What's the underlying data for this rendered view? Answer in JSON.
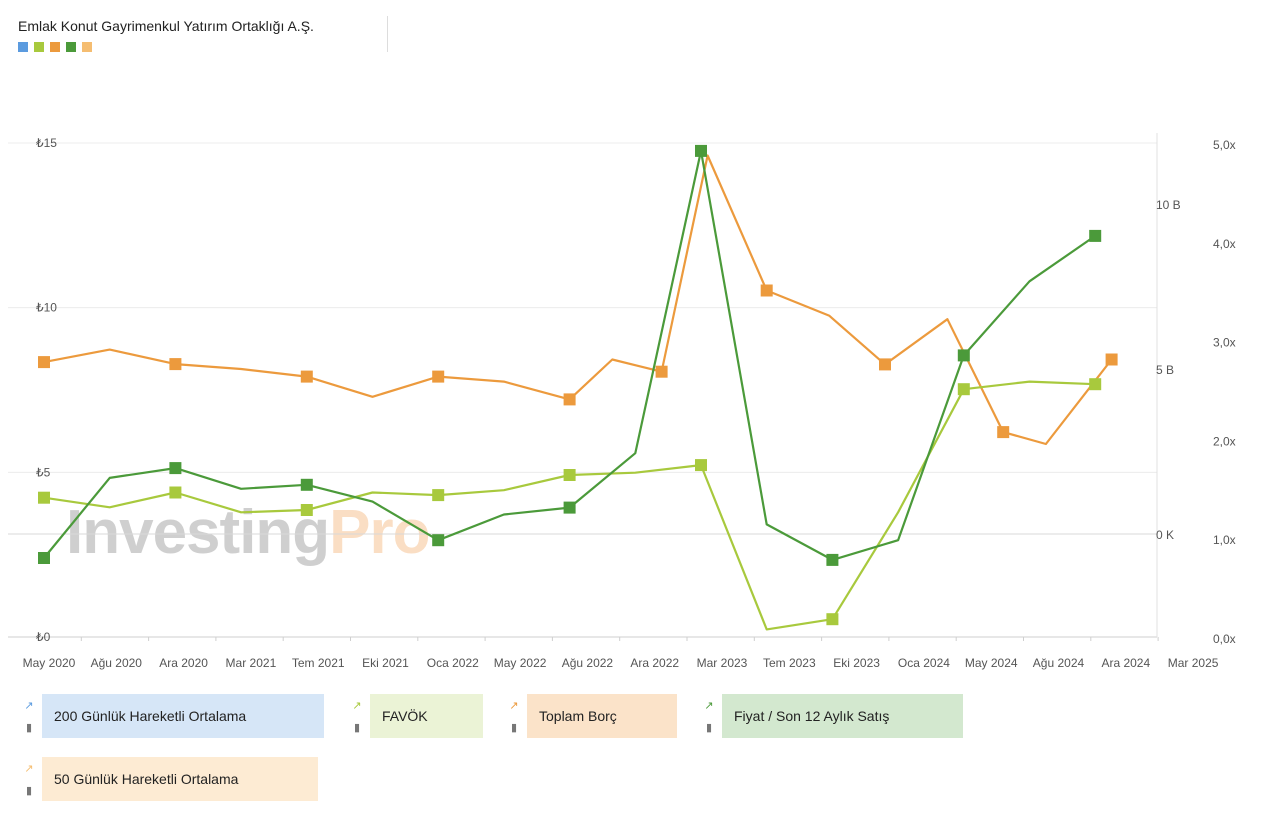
{
  "header": {
    "title": "Emlak Konut Gayrimenkul Yatırım Ortaklığı A.Ş."
  },
  "watermark": {
    "part1": "Investing",
    "part2": "Pro"
  },
  "colors": {
    "ma200": "#5b9bdf",
    "favok": "#a8c93d",
    "debt": "#ec9a3d",
    "ps": "#4b9a3a",
    "ma50": "#f5bd71"
  },
  "legend": [
    {
      "key": "ma200",
      "label": "200 Günlük Hareketli Ortalama",
      "bg": "#d6e6f7"
    },
    {
      "key": "favok",
      "label": "FAVÖK",
      "bg": "#ebf3d6"
    },
    {
      "key": "debt",
      "label": "Toplam Borç",
      "bg": "#fbe3c9"
    },
    {
      "key": "ps",
      "label": "Fiyat / Son 12 Aylık Satış",
      "bg": "#d3e8cf"
    },
    {
      "key": "ma50",
      "label": "50 Günlük Hareketli Ortalama",
      "bg": "#fdebd3"
    }
  ],
  "chart_data": {
    "type": "line",
    "grid": true,
    "x_ticks": [
      "May 2020",
      "Ağu 2020",
      "Ara 2020",
      "Mar 2021",
      "Tem 2021",
      "Eki 2021",
      "Oca 2022",
      "May 2022",
      "Ağu 2022",
      "Ara 2022",
      "Mar 2023",
      "Tem 2023",
      "Eki 2023",
      "Oca 2024",
      "May 2024",
      "Ağu 2024",
      "Ara 2024",
      "Mar 2025"
    ],
    "axes": {
      "left": {
        "ticks": [
          "₺0",
          "₺5",
          "₺10",
          "₺15"
        ],
        "values": [
          0,
          5,
          10,
          15
        ],
        "range": [
          0,
          15
        ]
      },
      "mid": {
        "ticks": [
          "0 K",
          "5 B",
          "10 B"
        ],
        "values": [
          0,
          5,
          10
        ],
        "range": [
          -3.12,
          11.85
        ]
      },
      "right": {
        "ticks": [
          "0,0x",
          "1,0x",
          "2,0x",
          "3,0x",
          "4,0x",
          "5,0x"
        ],
        "values": [
          0,
          1,
          2,
          3,
          4,
          5
        ],
        "range": [
          0,
          5
        ]
      }
    },
    "series": [
      {
        "name": "Toplam Borç",
        "key": "debt",
        "axis": "mid",
        "x": [
          0,
          1,
          2,
          3,
          4,
          5,
          6,
          7,
          8,
          8.65,
          9.4,
          10.1,
          11,
          11.95,
          12.8,
          13.75,
          14.6,
          15.25,
          16.25
        ],
        "y": [
          5.21,
          5.59,
          5.15,
          5.0,
          4.77,
          4.16,
          4.77,
          4.62,
          4.08,
          5.29,
          4.92,
          11.47,
          7.38,
          6.62,
          5.14,
          6.51,
          3.09,
          2.73,
          5.29
        ],
        "markers": [
          0,
          2,
          4,
          6,
          8,
          10,
          12,
          14,
          16,
          18
        ]
      },
      {
        "name": "FAVÖK",
        "key": "favok",
        "axis": "mid",
        "x": [
          0,
          1,
          2,
          3,
          4,
          5,
          6,
          7,
          8,
          9,
          10,
          11,
          12,
          13,
          14,
          15,
          16
        ],
        "y": [
          1.1,
          0.81,
          1.26,
          0.66,
          0.73,
          1.26,
          1.18,
          1.33,
          1.79,
          1.86,
          2.09,
          -2.89,
          -2.58,
          0.66,
          4.39,
          4.62,
          4.54
        ],
        "markers": [
          0,
          2,
          4,
          6,
          8,
          10,
          12,
          14,
          16
        ]
      },
      {
        "name": "Fiyat / Son 12 Aylık Satış",
        "key": "ps",
        "axis": "right",
        "x": [
          0,
          1,
          2,
          3,
          4,
          5,
          6,
          7,
          8,
          9,
          10,
          11,
          12,
          13,
          14,
          15,
          16
        ],
        "y": [
          0.8,
          1.61,
          1.71,
          1.5,
          1.54,
          1.37,
          0.98,
          1.24,
          1.31,
          1.86,
          4.92,
          1.14,
          0.78,
          0.98,
          2.85,
          3.6,
          4.06
        ],
        "markers": [
          0,
          2,
          4,
          6,
          8,
          10,
          12,
          14,
          16
        ]
      }
    ]
  }
}
